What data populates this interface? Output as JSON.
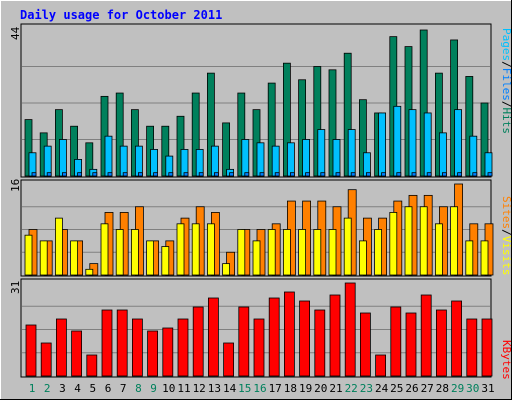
{
  "title": "Daily usage for October 2011",
  "colors": {
    "background": "#c0c0c0",
    "hits": "#00805c",
    "files": "#00c0ff",
    "pages": "#0080ff",
    "visits": "#ff8000",
    "sites": "#ffff00",
    "kbytes": "#ff0000",
    "title": "#0000ff",
    "weekend_day": "#00805c",
    "weekday": "#000000"
  },
  "chart_data": [
    {
      "type": "bar",
      "title": "Daily usage for October 2011",
      "ylabel_parts": [
        "Pages",
        "Files",
        "Hits"
      ],
      "ymax_label": "44",
      "ylim": [
        0,
        44
      ],
      "grid": true,
      "categories": [
        "1",
        "2",
        "3",
        "4",
        "5",
        "6",
        "7",
        "8",
        "9",
        "10",
        "11",
        "12",
        "13",
        "14",
        "15",
        "16",
        "17",
        "18",
        "19",
        "20",
        "21",
        "22",
        "23",
        "24",
        "25",
        "26",
        "27",
        "28",
        "29",
        "30",
        "31"
      ],
      "series": [
        {
          "name": "Hits",
          "values": [
            17,
            13,
            20,
            15,
            10,
            24,
            25,
            20,
            15,
            15,
            18,
            25,
            31,
            16,
            25,
            20,
            28,
            34,
            29,
            33,
            32,
            37,
            23,
            19,
            42,
            39,
            44,
            31,
            41,
            30,
            22
          ]
        },
        {
          "name": "Files",
          "values": [
            7,
            9,
            11,
            5,
            2,
            12,
            9,
            9,
            8,
            6,
            8,
            8,
            9,
            2,
            11,
            10,
            9,
            10,
            11,
            14,
            11,
            14,
            7,
            19,
            21,
            20,
            19,
            13,
            20,
            12,
            7
          ]
        },
        {
          "name": "Pages",
          "values": [
            1,
            1,
            1,
            1,
            1,
            1,
            1,
            1,
            1,
            1,
            1,
            1,
            1,
            1,
            1,
            1,
            1,
            1,
            1,
            1,
            1,
            1,
            1,
            1,
            1,
            1,
            1,
            1,
            1,
            1,
            1
          ]
        }
      ]
    },
    {
      "type": "bar",
      "ylabel_parts": [
        "Sites",
        "Visits"
      ],
      "ymax_label": "16",
      "ylim": [
        0,
        16
      ],
      "grid": true,
      "categories": [
        "1",
        "2",
        "3",
        "4",
        "5",
        "6",
        "7",
        "8",
        "9",
        "10",
        "11",
        "12",
        "13",
        "14",
        "15",
        "16",
        "17",
        "18",
        "19",
        "20",
        "21",
        "22",
        "23",
        "24",
        "25",
        "26",
        "27",
        "28",
        "29",
        "30",
        "31"
      ],
      "series": [
        {
          "name": "Visits",
          "values": [
            8,
            6,
            8,
            6,
            2,
            11,
            11,
            12,
            6,
            6,
            10,
            12,
            11,
            4,
            8,
            8,
            9,
            13,
            13,
            13,
            12,
            15,
            10,
            10,
            13,
            14,
            14,
            12,
            16,
            9,
            9
          ]
        },
        {
          "name": "Sites",
          "values": [
            7,
            6,
            10,
            6,
            1,
            9,
            8,
            8,
            6,
            5,
            9,
            9,
            9,
            2,
            8,
            6,
            8,
            8,
            8,
            8,
            8,
            10,
            6,
            8,
            11,
            12,
            12,
            9,
            12,
            6,
            6
          ]
        }
      ]
    },
    {
      "type": "bar",
      "ylabel_parts": [
        "KBytes"
      ],
      "ymax_label": "31",
      "ylim": [
        0,
        31
      ],
      "grid": true,
      "categories": [
        "1",
        "2",
        "3",
        "4",
        "5",
        "6",
        "7",
        "8",
        "9",
        "10",
        "11",
        "12",
        "13",
        "14",
        "15",
        "16",
        "17",
        "18",
        "19",
        "20",
        "21",
        "22",
        "23",
        "24",
        "25",
        "26",
        "27",
        "28",
        "29",
        "30",
        "31"
      ],
      "series": [
        {
          "name": "KBytes",
          "values": [
            17,
            11,
            19,
            15,
            7,
            22,
            22,
            19,
            15,
            16,
            19,
            23,
            26,
            11,
            23,
            19,
            26,
            28,
            25,
            22,
            27,
            31,
            21,
            7,
            23,
            21,
            27,
            22,
            25,
            19,
            19
          ]
        }
      ]
    }
  ],
  "weekend_days": [
    1,
    2,
    8,
    9,
    15,
    16,
    22,
    23,
    29,
    30
  ]
}
